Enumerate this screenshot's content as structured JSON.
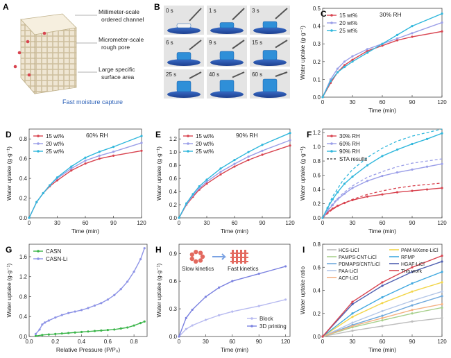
{
  "panelA": {
    "letter": "A",
    "labels": [
      "Millimeter-scale",
      "ordered channel",
      "Micrometer-scale",
      "rough pore",
      "Large specific",
      "surface area"
    ],
    "caption": "Fast moisture capture"
  },
  "panelB": {
    "letter": "B",
    "frames": [
      "0 s",
      "1 s",
      "3 s",
      "6 s",
      "9 s",
      "15 s",
      "25 s",
      "40 s",
      "60 s"
    ]
  },
  "chart_data": [
    {
      "id": "C",
      "type": "line",
      "title": "30% RH",
      "xlabel": "Time (min)",
      "ylabel": "Water uptake (g·g⁻¹)",
      "xlim": [
        0,
        120
      ],
      "ylim": [
        0,
        0.5
      ],
      "xticks": [
        0,
        30,
        60,
        90,
        120
      ],
      "yticks": [
        0.0,
        0.1,
        0.2,
        0.3,
        0.4,
        0.5
      ],
      "ytick_labels": [
        "0.0",
        "0.1",
        "0.2",
        "0.3",
        "0.4",
        "0.5"
      ],
      "legend_position": "top-left",
      "series": [
        {
          "name": "15 wt%",
          "color": "#d8434f",
          "x": [
            0,
            8,
            15,
            22,
            30,
            45,
            60,
            75,
            90,
            120
          ],
          "y": [
            0,
            0.08,
            0.14,
            0.18,
            0.21,
            0.26,
            0.29,
            0.32,
            0.34,
            0.37
          ]
        },
        {
          "name": "20 wt%",
          "color": "#9a9ee8",
          "x": [
            0,
            8,
            15,
            22,
            30,
            45,
            60,
            75,
            90,
            120
          ],
          "y": [
            0,
            0.1,
            0.16,
            0.2,
            0.23,
            0.27,
            0.3,
            0.33,
            0.36,
            0.42
          ]
        },
        {
          "name": "25 wt%",
          "color": "#2fb7dc",
          "x": [
            0,
            8,
            15,
            22,
            30,
            45,
            60,
            75,
            90,
            120
          ],
          "y": [
            0,
            0.09,
            0.14,
            0.17,
            0.2,
            0.25,
            0.3,
            0.35,
            0.4,
            0.47
          ]
        }
      ]
    },
    {
      "id": "D",
      "type": "line",
      "title": "60% RH",
      "xlabel": "Time (min)",
      "ylabel": "Water uptake (g·g⁻¹)",
      "xlim": [
        0,
        120
      ],
      "ylim": [
        0,
        0.9
      ],
      "xticks": [
        0,
        30,
        60,
        90,
        120
      ],
      "yticks": [
        0.0,
        0.2,
        0.4,
        0.6,
        0.8
      ],
      "ytick_labels": [
        "0.0",
        "0.2",
        "0.4",
        "0.6",
        "0.8"
      ],
      "legend_position": "top-left",
      "series": [
        {
          "name": "15 wt%",
          "color": "#d8434f",
          "x": [
            0,
            8,
            15,
            22,
            30,
            45,
            60,
            75,
            90,
            120
          ],
          "y": [
            0,
            0.16,
            0.25,
            0.32,
            0.38,
            0.48,
            0.55,
            0.6,
            0.63,
            0.68
          ]
        },
        {
          "name": "20 wt%",
          "color": "#9a9ee8",
          "x": [
            0,
            8,
            15,
            22,
            30,
            45,
            60,
            75,
            90,
            120
          ],
          "y": [
            0,
            0.16,
            0.25,
            0.33,
            0.4,
            0.5,
            0.58,
            0.63,
            0.67,
            0.76
          ]
        },
        {
          "name": "25 wt%",
          "color": "#2fb7dc",
          "x": [
            0,
            8,
            15,
            22,
            30,
            45,
            60,
            75,
            90,
            120
          ],
          "y": [
            0,
            0.16,
            0.25,
            0.33,
            0.41,
            0.52,
            0.61,
            0.67,
            0.72,
            0.83
          ]
        }
      ]
    },
    {
      "id": "E",
      "type": "line",
      "title": "90% RH",
      "xlabel": "Time (min)",
      "ylabel": "Water uptake (g·g⁻¹)",
      "xlim": [
        0,
        120
      ],
      "ylim": [
        0,
        1.35
      ],
      "xticks": [
        0,
        30,
        60,
        90,
        120
      ],
      "yticks": [
        0.0,
        0.2,
        0.4,
        0.6,
        0.8,
        1.0,
        1.2
      ],
      "ytick_labels": [
        "0.0",
        "0.2",
        "0.4",
        "0.6",
        "0.8",
        "1.0",
        "1.2"
      ],
      "legend_position": "top-left",
      "series": [
        {
          "name": "15 wt%",
          "color": "#d8434f",
          "x": [
            0,
            8,
            15,
            22,
            30,
            45,
            60,
            75,
            90,
            120
          ],
          "y": [
            0,
            0.2,
            0.32,
            0.43,
            0.52,
            0.66,
            0.78,
            0.88,
            0.96,
            1.1
          ]
        },
        {
          "name": "20 wt%",
          "color": "#9a9ee8",
          "x": [
            0,
            8,
            15,
            22,
            30,
            45,
            60,
            75,
            90,
            120
          ],
          "y": [
            0,
            0.21,
            0.34,
            0.45,
            0.55,
            0.7,
            0.82,
            0.93,
            1.02,
            1.18
          ]
        },
        {
          "name": "25 wt%",
          "color": "#2fb7dc",
          "x": [
            0,
            8,
            15,
            22,
            30,
            45,
            60,
            75,
            90,
            120
          ],
          "y": [
            0,
            0.22,
            0.36,
            0.48,
            0.58,
            0.75,
            0.88,
            1.0,
            1.11,
            1.29
          ]
        }
      ]
    },
    {
      "id": "F",
      "type": "line",
      "title": "",
      "xlabel": "Time (min)",
      "ylabel": "Water uptake (g·g⁻¹)",
      "xlim": [
        0,
        120
      ],
      "ylim": [
        0,
        1.25
      ],
      "xticks": [
        0,
        30,
        60,
        90,
        120
      ],
      "yticks": [
        0.0,
        0.2,
        0.4,
        0.6,
        0.8,
        1.0,
        1.2
      ],
      "ytick_labels": [
        "0.0",
        "0.2",
        "0.4",
        "0.6",
        "0.8",
        "1.0",
        "1.2"
      ],
      "legend_position": "top-left",
      "series": [
        {
          "name": "30% RH",
          "color": "#d8434f",
          "x": [
            0,
            5,
            10,
            15,
            22,
            30,
            45,
            60,
            75,
            90,
            105,
            120
          ],
          "y": [
            0,
            0.08,
            0.13,
            0.17,
            0.21,
            0.25,
            0.3,
            0.33,
            0.36,
            0.38,
            0.4,
            0.42
          ]
        },
        {
          "name": "60% RH",
          "color": "#9a9ee8",
          "x": [
            0,
            5,
            10,
            15,
            22,
            30,
            45,
            60,
            75,
            90,
            105,
            120
          ],
          "y": [
            0,
            0.1,
            0.18,
            0.26,
            0.34,
            0.42,
            0.52,
            0.59,
            0.64,
            0.68,
            0.72,
            0.76
          ]
        },
        {
          "name": "90% RH",
          "color": "#2fb7dc",
          "x": [
            0,
            5,
            10,
            15,
            22,
            30,
            45,
            60,
            75,
            90,
            105,
            120
          ],
          "y": [
            0,
            0.14,
            0.26,
            0.36,
            0.48,
            0.58,
            0.74,
            0.87,
            0.96,
            1.04,
            1.11,
            1.19
          ]
        },
        {
          "name": "",
          "dashed": true,
          "color": "#d8434f",
          "x": [
            0,
            10,
            20,
            30,
            45,
            60,
            75,
            90,
            105,
            120
          ],
          "y": [
            0,
            0.12,
            0.2,
            0.26,
            0.33,
            0.38,
            0.42,
            0.45,
            0.47,
            0.49
          ]
        },
        {
          "name": "",
          "dashed": true,
          "color": "#9a9ee8",
          "x": [
            0,
            10,
            20,
            30,
            45,
            60,
            75,
            90,
            105,
            120
          ],
          "y": [
            0,
            0.2,
            0.34,
            0.45,
            0.57,
            0.65,
            0.72,
            0.77,
            0.8,
            0.83
          ]
        },
        {
          "name": "",
          "dashed": true,
          "color": "#2fb7dc",
          "x": [
            0,
            10,
            20,
            30,
            45,
            60,
            75,
            90,
            105,
            120
          ],
          "y": [
            0,
            0.3,
            0.52,
            0.68,
            0.85,
            0.98,
            1.08,
            1.15,
            1.2,
            1.25
          ]
        }
      ],
      "legend_extra": "STA results"
    },
    {
      "id": "G",
      "type": "line",
      "title": "",
      "xlabel": "Relative Pressure (P/P₀)",
      "ylabel": "Water uptake (g·g⁻¹)",
      "xlim": [
        0,
        0.9
      ],
      "ylim": [
        0,
        1.85
      ],
      "xticks": [
        0.0,
        0.2,
        0.4,
        0.6,
        0.8
      ],
      "xtick_labels": [
        "0.0",
        "0.2",
        "0.4",
        "0.6",
        "0.8"
      ],
      "yticks": [
        0.0,
        0.4,
        0.8,
        1.2,
        1.6
      ],
      "ytick_labels": [
        "0.0",
        "0.4",
        "0.8",
        "1.2",
        "1.6"
      ],
      "legend_position": "top-left",
      "series": [
        {
          "name": "CASN",
          "color": "#3bb54a",
          "x": [
            0.05,
            0.1,
            0.15,
            0.2,
            0.25,
            0.3,
            0.35,
            0.4,
            0.45,
            0.5,
            0.55,
            0.6,
            0.65,
            0.7,
            0.75,
            0.8,
            0.85,
            0.88
          ],
          "y": [
            0.01,
            0.03,
            0.04,
            0.05,
            0.06,
            0.07,
            0.08,
            0.09,
            0.1,
            0.11,
            0.12,
            0.13,
            0.14,
            0.16,
            0.18,
            0.22,
            0.27,
            0.3
          ]
        },
        {
          "name": "CASN-Li",
          "color": "#8d93e6",
          "x": [
            0.05,
            0.08,
            0.1,
            0.12,
            0.15,
            0.2,
            0.25,
            0.3,
            0.35,
            0.4,
            0.45,
            0.5,
            0.55,
            0.6,
            0.65,
            0.7,
            0.75,
            0.8,
            0.85,
            0.88
          ],
          "y": [
            0.05,
            0.14,
            0.24,
            0.28,
            0.32,
            0.38,
            0.43,
            0.47,
            0.5,
            0.53,
            0.57,
            0.62,
            0.67,
            0.74,
            0.83,
            0.95,
            1.1,
            1.3,
            1.55,
            1.77
          ]
        }
      ]
    },
    {
      "id": "H",
      "type": "line",
      "title": "",
      "xlabel": "Time (min)",
      "ylabel": "Water uptake (g·g⁻¹)",
      "xlim": [
        0,
        125
      ],
      "ylim": [
        0,
        1.0
      ],
      "xticks": [
        0,
        30,
        60,
        90,
        120
      ],
      "yticks": [
        0.0,
        0.3,
        0.6,
        0.9
      ],
      "ytick_labels": [
        "0.0",
        "0.3",
        "0.6",
        "0.9"
      ],
      "legend_position": "bottom-right",
      "inset": {
        "left": "Slow kinetics",
        "right": "Fast kinetics"
      },
      "series": [
        {
          "name": "Block",
          "color": "#b7baf0",
          "x": [
            0,
            8,
            15,
            30,
            45,
            60,
            90,
            120
          ],
          "y": [
            0,
            0.08,
            0.12,
            0.18,
            0.23,
            0.27,
            0.33,
            0.4
          ]
        },
        {
          "name": "3D printing",
          "color": "#7b82e0",
          "x": [
            0,
            8,
            15,
            30,
            45,
            60,
            90,
            120
          ],
          "y": [
            0,
            0.2,
            0.29,
            0.43,
            0.53,
            0.6,
            0.68,
            0.76
          ]
        }
      ]
    },
    {
      "id": "I",
      "type": "line",
      "title": "",
      "xlabel": "Time (min)",
      "ylabel": "Water uptake ratio",
      "xlim": [
        0,
        120
      ],
      "ylim": [
        0,
        0.8
      ],
      "xticks": [
        0,
        30,
        60,
        90,
        120
      ],
      "yticks": [
        0.0,
        0.2,
        0.4,
        0.6,
        0.8
      ],
      "ytick_labels": [
        "0.0",
        "0.2",
        "0.4",
        "0.6",
        "0.8"
      ],
      "legend_position": "top",
      "series": [
        {
          "name": "HCS-LiCl",
          "color": "#bdbdbd",
          "x": [
            0,
            30,
            60,
            90,
            120
          ],
          "y": [
            0,
            0.05,
            0.09,
            0.13,
            0.16
          ]
        },
        {
          "name": "PAMPS-CNT-LiCl",
          "color": "#a8d08d",
          "x": [
            0,
            30,
            60,
            90,
            120
          ],
          "y": [
            0,
            0.08,
            0.14,
            0.2,
            0.25
          ]
        },
        {
          "name": "PDMAPS/CNT/LiCl",
          "color": "#6fa8dc",
          "x": [
            0,
            30,
            60,
            90,
            120
          ],
          "y": [
            0,
            0.1,
            0.18,
            0.27,
            0.35
          ]
        },
        {
          "name": "PAA-LiCl",
          "color": "#b4c7e7",
          "x": [
            0,
            30,
            60,
            90,
            120
          ],
          "y": [
            0,
            0.12,
            0.22,
            0.31,
            0.39
          ]
        },
        {
          "name": "ACF-LiCl",
          "color": "#f4b183",
          "x": [
            0,
            30,
            60,
            90,
            120
          ],
          "y": [
            0,
            0.09,
            0.16,
            0.23,
            0.28
          ]
        },
        {
          "name": "PAM-MXene-LiCl",
          "color": "#f2d64b",
          "x": [
            0,
            30,
            60,
            90,
            120
          ],
          "y": [
            0,
            0.17,
            0.29,
            0.39,
            0.47
          ]
        },
        {
          "name": "RFMP",
          "color": "#41a9e0",
          "x": [
            0,
            30,
            60,
            90,
            120
          ],
          "y": [
            0,
            0.2,
            0.34,
            0.46,
            0.56
          ]
        },
        {
          "name": "HGAF-LiCl",
          "color": "#4e5fb0",
          "x": [
            0,
            30,
            60,
            90,
            120
          ],
          "y": [
            0,
            0.28,
            0.44,
            0.56,
            0.65
          ]
        },
        {
          "name": "This work",
          "color": "#d8434f",
          "x": [
            0,
            30,
            60,
            90,
            120
          ],
          "y": [
            0,
            0.3,
            0.47,
            0.6,
            0.7
          ]
        }
      ]
    }
  ]
}
